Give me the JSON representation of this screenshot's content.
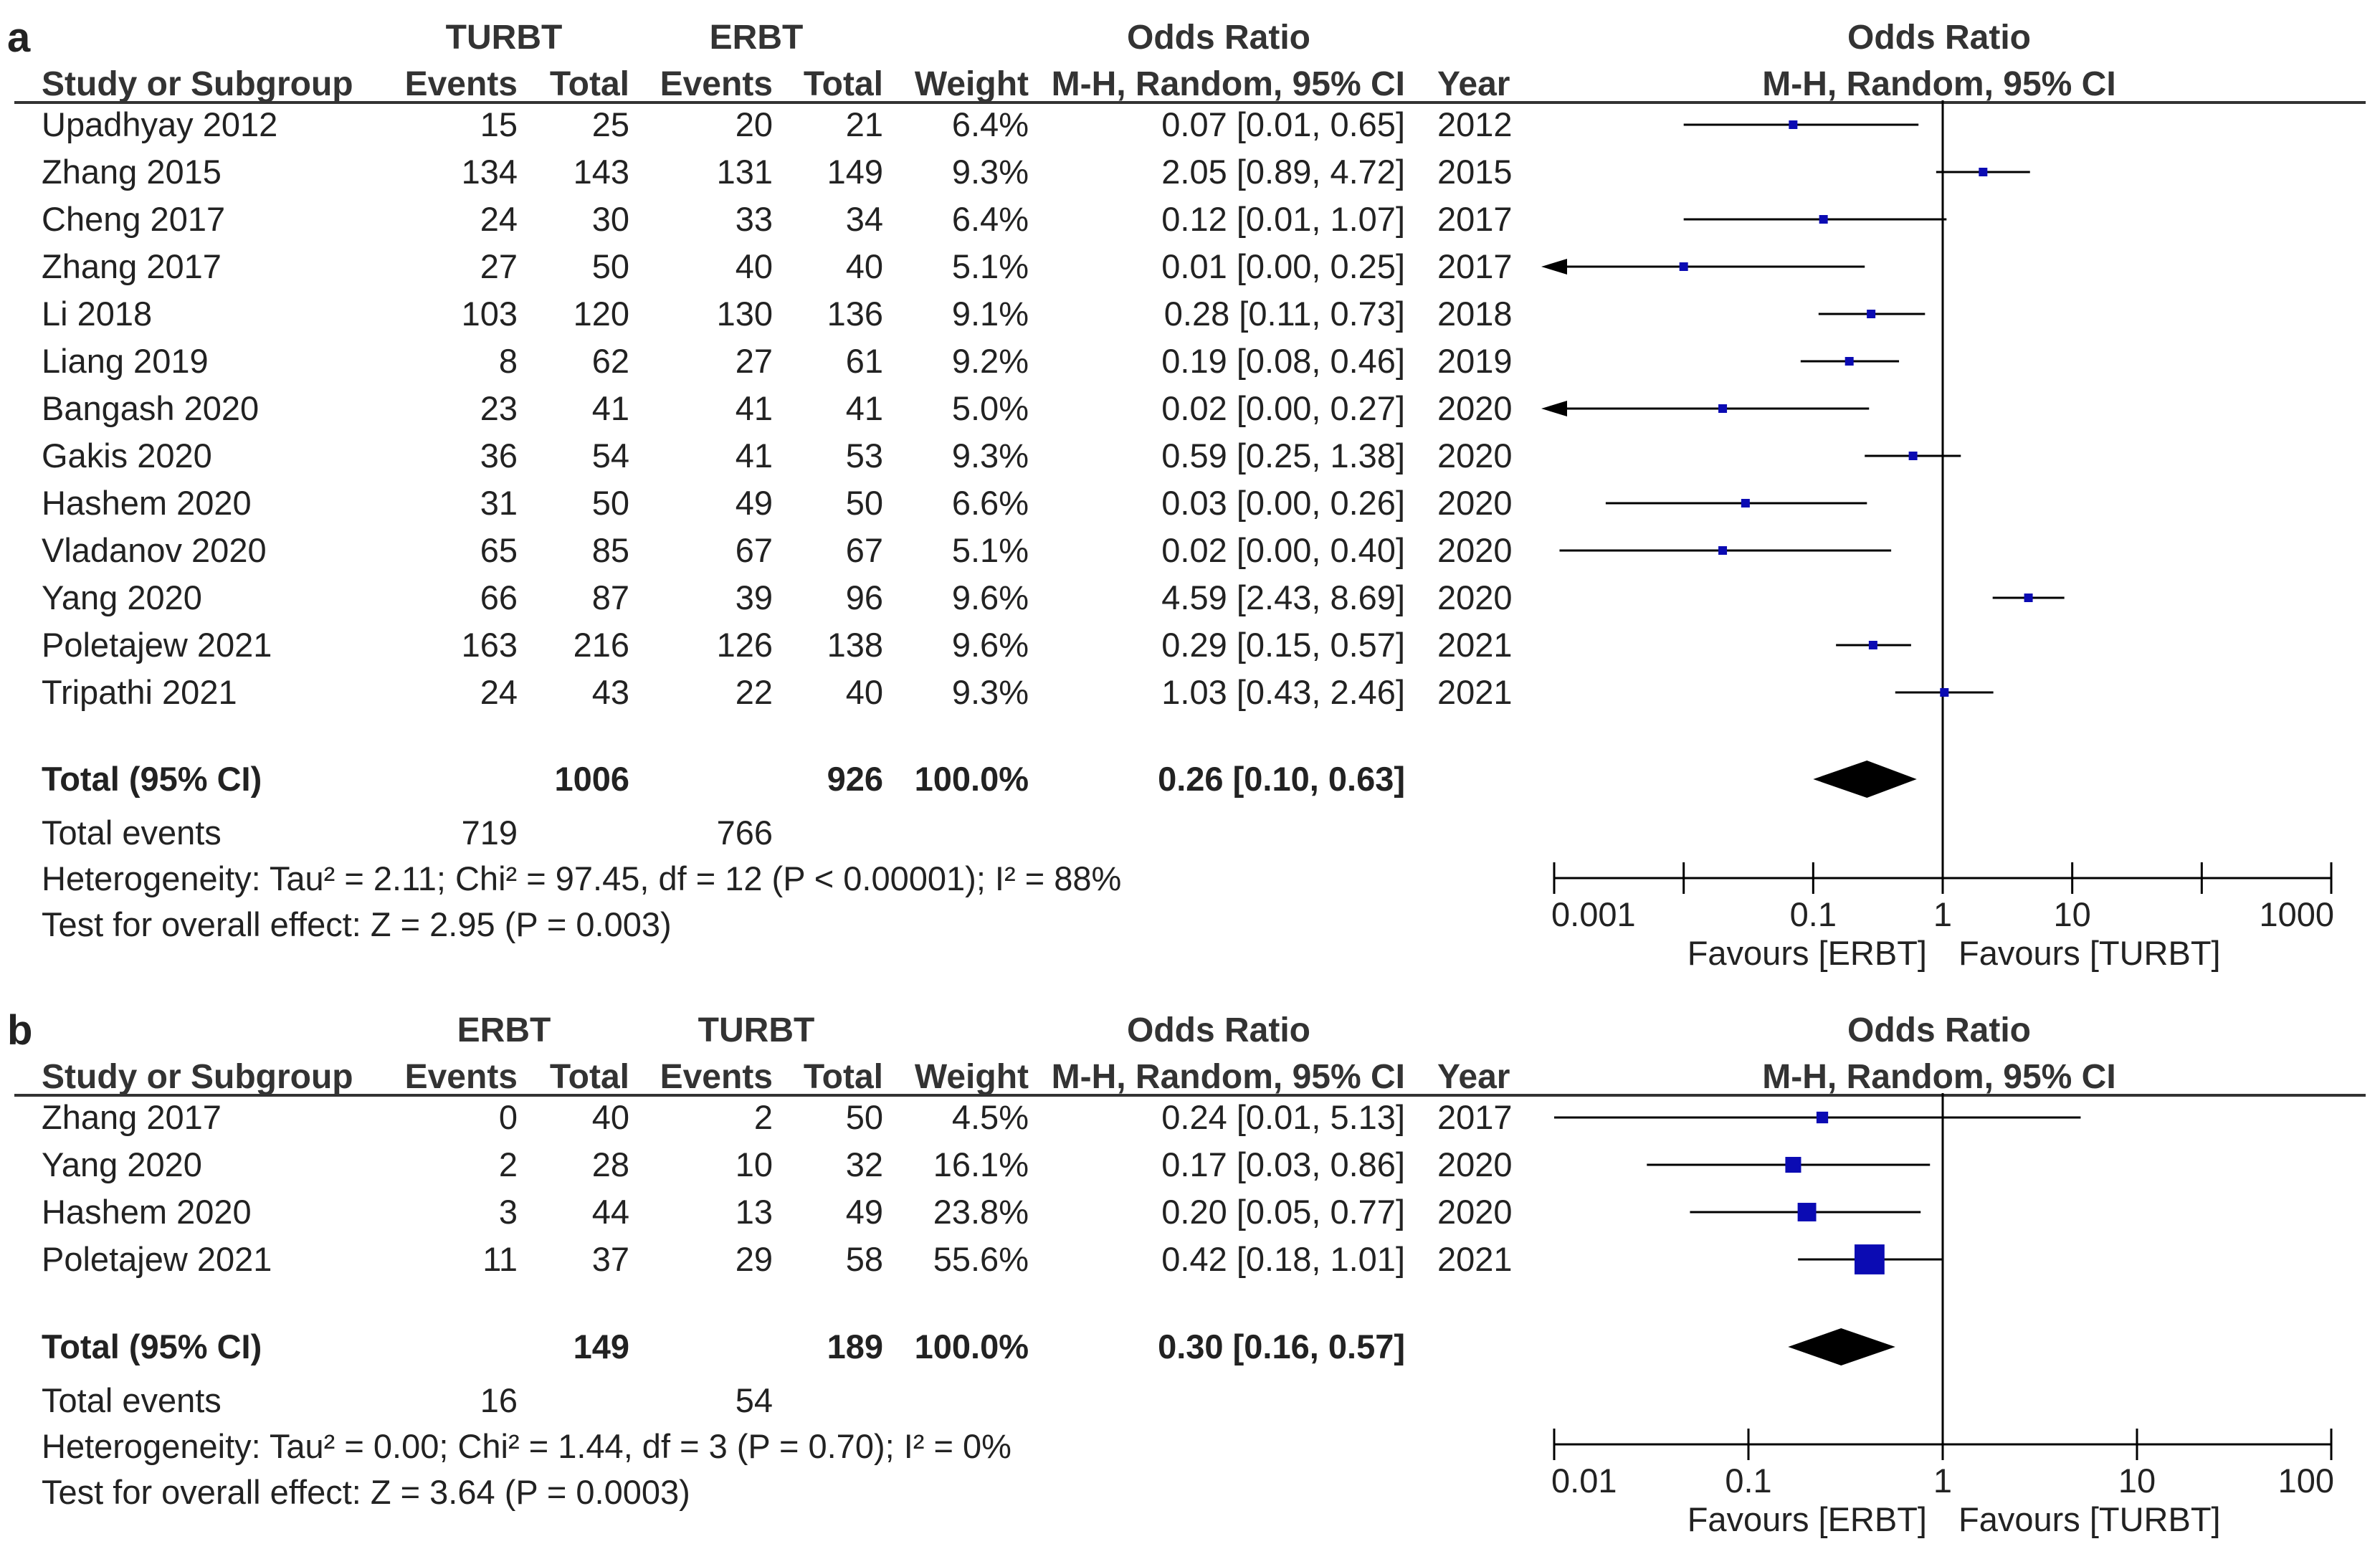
{
  "chart_data": [
    {
      "type": "forest",
      "panel_label": "a",
      "group_headers": [
        "TURBT",
        "ERBT"
      ],
      "columns": [
        "Study or Subgroup",
        "Events",
        "Total",
        "Events",
        "Total",
        "Weight",
        "M-H, Random, 95% CI",
        "Year",
        "M-H, Random, 95% CI"
      ],
      "effect_title": "Odds Ratio",
      "plot_title": "Odds Ratio",
      "studies": [
        {
          "name": "Upadhyay 2012",
          "e1": "15",
          "t1": "25",
          "e2": "20",
          "t2": "21",
          "weight": "6.4%",
          "ci_text": "0.07 [0.01, 0.65]",
          "year": "2012",
          "or": 0.07,
          "lo": 0.01,
          "hi": 0.65
        },
        {
          "name": "Zhang 2015",
          "e1": "134",
          "t1": "143",
          "e2": "131",
          "t2": "149",
          "weight": "9.3%",
          "ci_text": "2.05 [0.89, 4.72]",
          "year": "2015",
          "or": 2.05,
          "lo": 0.89,
          "hi": 4.72
        },
        {
          "name": "Cheng 2017",
          "e1": "24",
          "t1": "30",
          "e2": "33",
          "t2": "34",
          "weight": "6.4%",
          "ci_text": "0.12 [0.01, 1.07]",
          "year": "2017",
          "or": 0.12,
          "lo": 0.01,
          "hi": 1.07
        },
        {
          "name": "Zhang 2017",
          "e1": "27",
          "t1": "50",
          "e2": "40",
          "t2": "40",
          "weight": "5.1%",
          "ci_text": "0.01 [0.00, 0.25]",
          "year": "2017",
          "or": 0.01,
          "lo": 0.0,
          "hi": 0.25
        },
        {
          "name": "Li 2018",
          "e1": "103",
          "t1": "120",
          "e2": "130",
          "t2": "136",
          "weight": "9.1%",
          "ci_text": "0.28 [0.11, 0.73]",
          "year": "2018",
          "or": 0.28,
          "lo": 0.11,
          "hi": 0.73
        },
        {
          "name": "Liang 2019",
          "e1": "8",
          "t1": "62",
          "e2": "27",
          "t2": "61",
          "weight": "9.2%",
          "ci_text": "0.19 [0.08, 0.46]",
          "year": "2019",
          "or": 0.19,
          "lo": 0.08,
          "hi": 0.46
        },
        {
          "name": "Bangash 2020",
          "e1": "23",
          "t1": "41",
          "e2": "41",
          "t2": "41",
          "weight": "5.0%",
          "ci_text": "0.02 [0.00, 0.27]",
          "year": "2020",
          "or": 0.02,
          "lo": 0.0,
          "hi": 0.27
        },
        {
          "name": "Gakis 2020",
          "e1": "36",
          "t1": "54",
          "e2": "41",
          "t2": "53",
          "weight": "9.3%",
          "ci_text": "0.59 [0.25, 1.38]",
          "year": "2020",
          "or": 0.59,
          "lo": 0.25,
          "hi": 1.38
        },
        {
          "name": "Hashem 2020",
          "e1": "31",
          "t1": "50",
          "e2": "49",
          "t2": "50",
          "weight": "6.6%",
          "ci_text": "0.03 [0.00, 0.26]",
          "year": "2020",
          "or": 0.03,
          "lo": 0.0025,
          "hi": 0.26
        },
        {
          "name": "Vladanov 2020",
          "e1": "65",
          "t1": "85",
          "e2": "67",
          "t2": "67",
          "weight": "5.1%",
          "ci_text": "0.02 [0.00, 0.40]",
          "year": "2020",
          "or": 0.02,
          "lo": 0.0011,
          "hi": 0.4
        },
        {
          "name": "Yang 2020",
          "e1": "66",
          "t1": "87",
          "e2": "39",
          "t2": "96",
          "weight": "9.6%",
          "ci_text": "4.59 [2.43, 8.69]",
          "year": "2020",
          "or": 4.59,
          "lo": 2.43,
          "hi": 8.69
        },
        {
          "name": "Poletajew 2021",
          "e1": "163",
          "t1": "216",
          "e2": "126",
          "t2": "138",
          "weight": "9.6%",
          "ci_text": "0.29 [0.15, 0.57]",
          "year": "2021",
          "or": 0.29,
          "lo": 0.15,
          "hi": 0.57
        },
        {
          "name": "Tripathi 2021",
          "e1": "24",
          "t1": "43",
          "e2": "22",
          "t2": "40",
          "weight": "9.3%",
          "ci_text": "1.03 [0.43, 2.46]",
          "year": "2021",
          "or": 1.03,
          "lo": 0.43,
          "hi": 2.46
        }
      ],
      "total": {
        "label": "Total (95% CI)",
        "t1": "1006",
        "t2": "926",
        "weight": "100.0%",
        "ci_text": "0.26 [0.10, 0.63]",
        "or": 0.26,
        "lo": 0.1,
        "hi": 0.63
      },
      "total_events": {
        "label": "Total events",
        "e1": "719",
        "e2": "766"
      },
      "heterogeneity": "Heterogeneity: Tau² = 2.11; Chi² = 97.45, df = 12 (P < 0.00001); I² = 88%",
      "overall_effect": "Test for overall effect: Z = 2.95 (P = 0.003)",
      "axis": {
        "scale": "log",
        "min": 0.001,
        "max": 1000,
        "ticks": [
          "0.001",
          "0.1",
          "1",
          "10",
          "1000"
        ],
        "tick_values": [
          0.001,
          0.1,
          1,
          10,
          1000
        ]
      },
      "favours_left": "Favours [ERBT]",
      "favours_right": "Favours [TURBT]"
    },
    {
      "type": "forest",
      "panel_label": "b",
      "group_headers": [
        "ERBT",
        "TURBT"
      ],
      "columns": [
        "Study or Subgroup",
        "Events",
        "Total",
        "Events",
        "Total",
        "Weight",
        "M-H, Random, 95% CI",
        "Year",
        "M-H, Random, 95% CI"
      ],
      "effect_title": "Odds Ratio",
      "plot_title": "Odds Ratio",
      "studies": [
        {
          "name": "Zhang 2017",
          "e1": "0",
          "t1": "40",
          "e2": "2",
          "t2": "50",
          "weight": "4.5%",
          "ci_text": "0.24 [0.01, 5.13]",
          "year": "2017",
          "or": 0.24,
          "lo": 0.01,
          "hi": 5.13
        },
        {
          "name": "Yang 2020",
          "e1": "2",
          "t1": "28",
          "e2": "10",
          "t2": "32",
          "weight": "16.1%",
          "ci_text": "0.17 [0.03, 0.86]",
          "year": "2020",
          "or": 0.17,
          "lo": 0.03,
          "hi": 0.86
        },
        {
          "name": "Hashem 2020",
          "e1": "3",
          "t1": "44",
          "e2": "13",
          "t2": "49",
          "weight": "23.8%",
          "ci_text": "0.20 [0.05, 0.77]",
          "year": "2020",
          "or": 0.2,
          "lo": 0.05,
          "hi": 0.77
        },
        {
          "name": "Poletajew 2021",
          "e1": "11",
          "t1": "37",
          "e2": "29",
          "t2": "58",
          "weight": "55.6%",
          "ci_text": "0.42 [0.18, 1.01]",
          "year": "2021",
          "or": 0.42,
          "lo": 0.18,
          "hi": 1.01
        }
      ],
      "total": {
        "label": "Total (95% CI)",
        "t1": "149",
        "t2": "189",
        "weight": "100.0%",
        "ci_text": "0.30 [0.16, 0.57]",
        "or": 0.3,
        "lo": 0.16,
        "hi": 0.57
      },
      "total_events": {
        "label": "Total events",
        "e1": "16",
        "e2": "54"
      },
      "heterogeneity": "Heterogeneity: Tau² = 0.00; Chi² = 1.44, df = 3 (P = 0.70); I² = 0%",
      "overall_effect": "Test for overall effect: Z = 3.64 (P = 0.0003)",
      "axis": {
        "scale": "log",
        "min": 0.01,
        "max": 100,
        "ticks": [
          "0.01",
          "0.1",
          "1",
          "10",
          "100"
        ],
        "tick_values": [
          0.01,
          0.1,
          1,
          10,
          100
        ]
      },
      "favours_left": "Favours [ERBT]",
      "favours_right": "Favours [TURBT]"
    }
  ],
  "colors": {
    "marker": "#0b0bb3",
    "line": "#000000",
    "text": "#222222",
    "header": "#333333"
  }
}
